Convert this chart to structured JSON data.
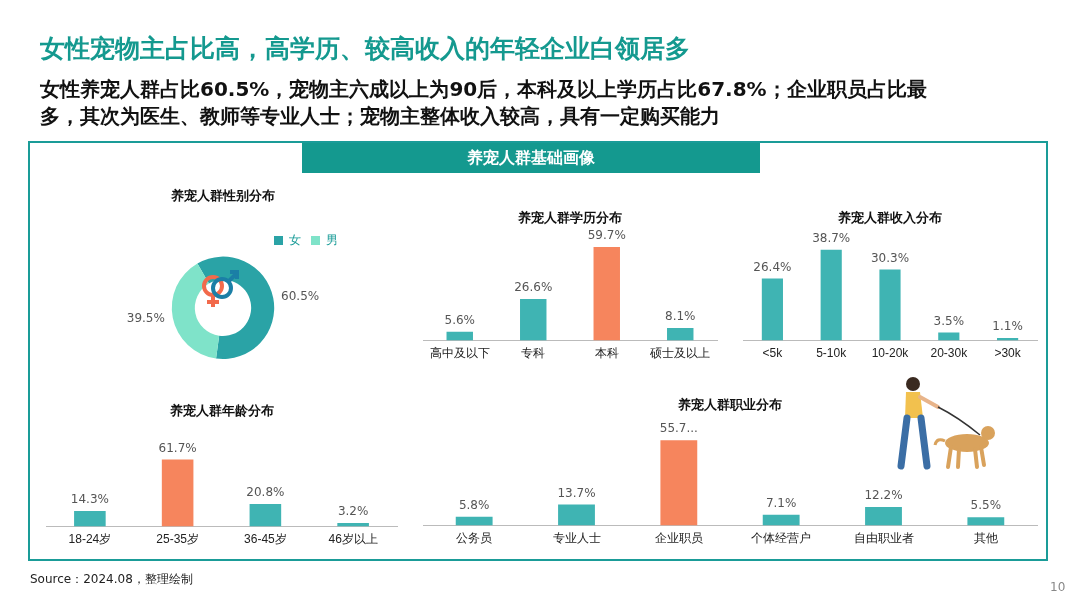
{
  "chart_data": [
    {
      "type": "other",
      "title": "女性宠物主占比高，高学历、较高收入的年轻企业白领居多",
      "subtitle": "女性养宠人群占比60.5%，宠物主六成以上为90后，本科及以上学历占比67.8%；企业职员占比最多，其次为医生、教师等专业人士；宠物主整体收入较高，具有一定购买能力",
      "annotations": [
        "养宠人群基础画像",
        "Source：2024.08，整理绘制",
        "10"
      ]
    },
    {
      "type": "donut",
      "title": "养宠人群性别分布",
      "categories": [
        "女",
        "男"
      ],
      "values": [
        60.5,
        39.5
      ],
      "colors": [
        "#2aa3a6",
        "#7fe3c9"
      ],
      "value_labels": [
        "60.5%",
        "39.5%"
      ],
      "legend": "top right"
    },
    {
      "type": "bar",
      "title": "养宠人群学历分布",
      "categories": [
        "高中及以下",
        "专科",
        "本科",
        "硕士及以上"
      ],
      "values": [
        5.6,
        26.6,
        59.7,
        8.1
      ],
      "colors": [
        "#3fb4b3",
        "#3fb4b3",
        "#f6855d",
        "#3fb4b3"
      ],
      "value_labels": [
        "5.6%",
        "26.6%",
        "59.7%",
        "8.1%"
      ],
      "tick_labels": "x"
    },
    {
      "type": "bar",
      "title": "养宠人群收入分布",
      "categories": [
        "<5k",
        "5-10k",
        "10-20k",
        "20-30k",
        ">30k"
      ],
      "values": [
        26.4,
        38.7,
        30.3,
        3.5,
        1.1
      ],
      "colors": [
        "#3fb4b3",
        "#3fb4b3",
        "#3fb4b3",
        "#3fb4b3",
        "#3fb4b3"
      ],
      "value_labels": [
        "26.4%",
        "38.7%",
        "30.3%",
        "3.5%",
        "1.1%"
      ],
      "tick_labels": "x"
    },
    {
      "type": "bar",
      "title": "养宠人群年龄分布",
      "categories": [
        "18-24岁",
        "25-35岁",
        "36-45岁",
        "46岁以上"
      ],
      "values": [
        14.3,
        61.7,
        20.8,
        3.2
      ],
      "colors": [
        "#3fb4b3",
        "#f6855d",
        "#3fb4b3",
        "#3fb4b3"
      ],
      "value_labels": [
        "14.3%",
        "61.7%",
        "20.8%",
        "3.2%"
      ],
      "tick_labels": "x"
    },
    {
      "type": "bar",
      "title": "养宠人群职业分布",
      "categories": [
        "公务员",
        "专业人士",
        "企业职员",
        "个体经营户",
        "自由职业者",
        "其他"
      ],
      "values": [
        5.8,
        13.7,
        55.7,
        7.1,
        12.2,
        5.5
      ],
      "colors": [
        "#3fb4b3",
        "#3fb4b3",
        "#f6855d",
        "#3fb4b3",
        "#3fb4b3",
        "#3fb4b3"
      ],
      "value_labels": [
        "5.8%",
        "13.7%",
        "55.7...",
        "7.1%",
        "12.2%",
        "5.5%"
      ],
      "tick_labels": "x"
    }
  ]
}
